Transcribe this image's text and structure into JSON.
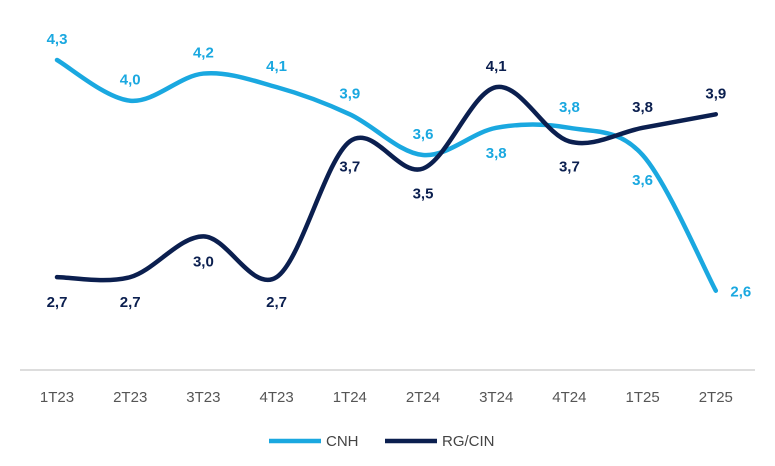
{
  "chart_data": {
    "type": "line",
    "categories": [
      "1T23",
      "2T23",
      "3T23",
      "4T23",
      "1T24",
      "2T24",
      "3T24",
      "4T24",
      "1T25",
      "2T25"
    ],
    "series": [
      {
        "name": "CNH",
        "color": "#1aa8e0",
        "values": [
          4.3,
          4.0,
          4.2,
          4.1,
          3.9,
          3.6,
          3.8,
          3.8,
          3.6,
          2.6
        ],
        "labels": [
          "4,3",
          "4,0",
          "4,2",
          "4,1",
          "3,9",
          "3,6",
          "3,8",
          "3,8",
          "3,6",
          "2,6"
        ]
      },
      {
        "name": "RG/CIN",
        "color": "#0b1f4f",
        "values": [
          2.7,
          2.7,
          3.0,
          2.7,
          3.7,
          3.5,
          4.1,
          3.7,
          3.8,
          3.9
        ],
        "labels": [
          "2,7",
          "2,7",
          "3,0",
          "2,7",
          "3,7",
          "3,5",
          "4,1",
          "3,7",
          "3,8",
          "3,9"
        ]
      }
    ],
    "legend_position": "bottom-center",
    "grid": false
  }
}
